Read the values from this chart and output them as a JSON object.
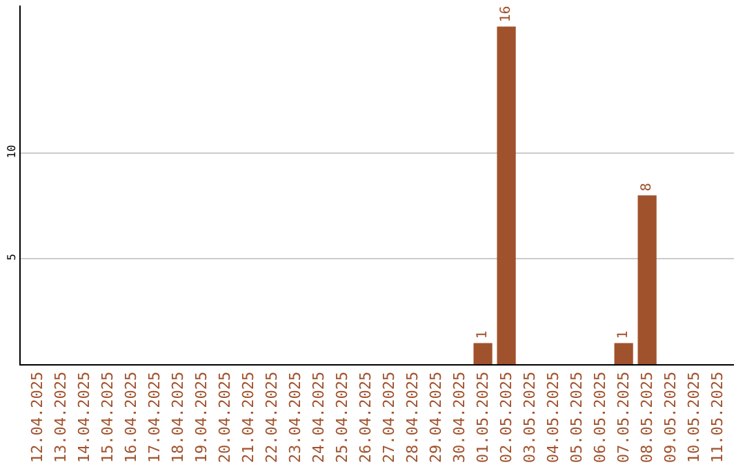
{
  "chart_data": {
    "type": "bar",
    "categories": [
      "12.04.2025",
      "13.04.2025",
      "14.04.2025",
      "15.04.2025",
      "16.04.2025",
      "17.04.2025",
      "18.04.2025",
      "19.04.2025",
      "20.04.2025",
      "21.04.2025",
      "22.04.2025",
      "23.04.2025",
      "24.04.2025",
      "25.04.2025",
      "26.04.2025",
      "27.04.2025",
      "28.04.2025",
      "29.04.2025",
      "30.04.2025",
      "01.05.2025",
      "02.05.2025",
      "03.05.2025",
      "04.05.2025",
      "05.05.2025",
      "06.05.2025",
      "07.05.2025",
      "08.05.2025",
      "09.05.2025",
      "10.05.2025",
      "11.05.2025"
    ],
    "values": [
      0,
      0,
      0,
      0,
      0,
      0,
      0,
      0,
      0,
      0,
      0,
      0,
      0,
      0,
      0,
      0,
      0,
      0,
      0,
      1,
      16,
      0,
      0,
      0,
      0,
      1,
      8,
      0,
      0,
      0
    ],
    "value_labels": [
      null,
      null,
      null,
      null,
      null,
      null,
      null,
      null,
      null,
      null,
      null,
      null,
      null,
      null,
      null,
      null,
      null,
      null,
      null,
      "1",
      "16",
      null,
      null,
      null,
      null,
      "1",
      "8",
      null,
      null,
      null
    ],
    "color": "#a0522d",
    "ylim": [
      0,
      17
    ],
    "yticks": [
      5,
      10
    ],
    "grid": "y"
  }
}
